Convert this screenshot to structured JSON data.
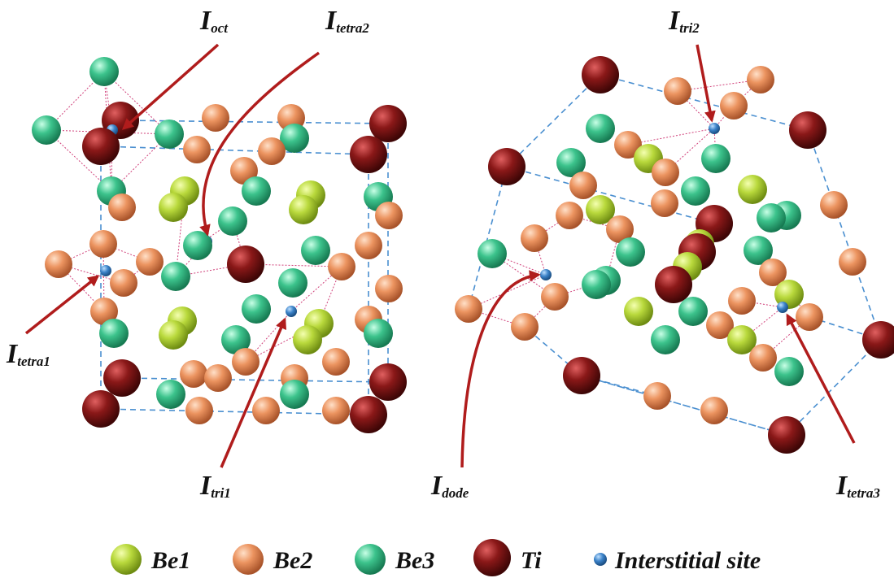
{
  "labels": [
    {
      "symbol": "I",
      "subscript": "oct"
    },
    {
      "symbol": "I",
      "subscript": "tetra2"
    },
    {
      "symbol": "I",
      "subscript": "tetra1"
    },
    {
      "symbol": "I",
      "subscript": "tri1"
    },
    {
      "symbol": "I",
      "subscript": "dode"
    },
    {
      "symbol": "I",
      "subscript": "tri2"
    },
    {
      "symbol": "I",
      "subscript": "tetra3"
    }
  ],
  "legend": {
    "items": [
      {
        "label": "Be1"
      },
      {
        "label": "Be2"
      },
      {
        "label": "Be3"
      },
      {
        "label": "Ti"
      },
      {
        "label": "Interstitial site"
      }
    ]
  }
}
